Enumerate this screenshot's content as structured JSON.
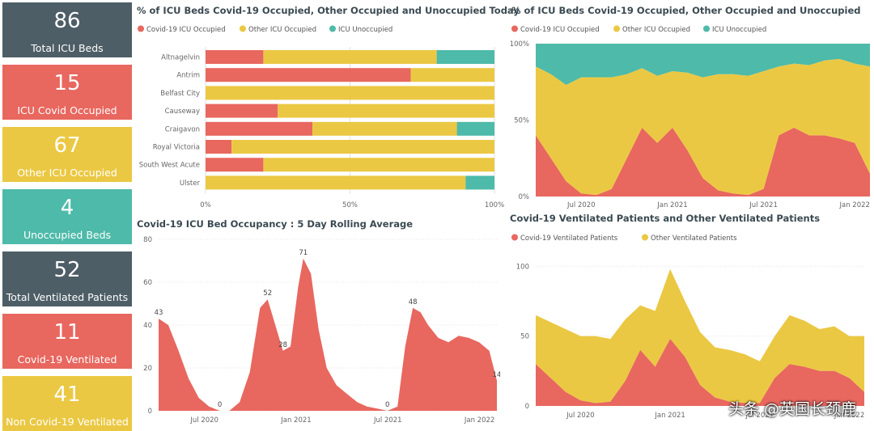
{
  "colors": {
    "covid": "#e8675f",
    "other": "#ebc843",
    "unocc": "#4ebaa9",
    "dark": "#4e5e66",
    "axis": "#666666"
  },
  "cards": [
    {
      "value": "86",
      "label": "Total ICU Beds",
      "color": "#4e5e66"
    },
    {
      "value": "15",
      "label": "ICU Covid Occupied",
      "color": "#e8675f"
    },
    {
      "value": "67",
      "label": "Other ICU Occupied",
      "color": "#ebc843"
    },
    {
      "value": "4",
      "label": "Unoccupied Beds",
      "color": "#4ebaa9"
    },
    {
      "value": "52",
      "label": "Total Ventilated Patients",
      "color": "#4e5e66"
    },
    {
      "value": "11",
      "label": "Covid-19 Ventilated",
      "color": "#e8675f"
    },
    {
      "value": "41",
      "label": "Non Covid-19 Ventilated",
      "color": "#ebc843"
    }
  ],
  "titles": {
    "today": "% of ICU Beds Covid-19 Occupied, Other Occupied and Unoccupied Today",
    "trend": "% of ICU Beds Covid-19 Occupied, Other Occupied and Unoccupied",
    "rolling": "Covid-19 ICU Bed Occupancy : 5 Day Rolling Average",
    "vent": "Covid-19 Ventilated Patients and Other Ventilated Patients"
  },
  "watermark": "头条 @英国长颈鹿",
  "chart_data": [
    {
      "type": "bar",
      "stacked": true,
      "orientation": "horizontal",
      "title": "% of ICU Beds Covid-19 Occupied, Other Occupied and Unoccupied Today",
      "categories": [
        "Altnagelvin",
        "Antrim",
        "Belfast City",
        "Causeway",
        "Craigavon",
        "Royal Victoria",
        "South West Acute",
        "Ulster"
      ],
      "series": [
        {
          "name": "Covid-19 ICU Occupied",
          "values": [
            20,
            71,
            0,
            25,
            37,
            9,
            20,
            0
          ]
        },
        {
          "name": "Other ICU Occupied",
          "values": [
            60,
            29,
            100,
            75,
            50,
            91,
            80,
            90
          ]
        },
        {
          "name": "ICU Unoccupied",
          "values": [
            20,
            0,
            0,
            0,
            13,
            0,
            0,
            10
          ]
        }
      ],
      "xticks": [
        "0%",
        "50%",
        "100%"
      ],
      "xlim": [
        0,
        100
      ],
      "legend": "top-left"
    },
    {
      "type": "area",
      "stacked": true,
      "percent": true,
      "title": "% of ICU Beds Covid-19 Occupied, Other Occupied and Unoccupied",
      "x": [
        "2020-04",
        "2020-05",
        "2020-06",
        "2020-07",
        "2020-08",
        "2020-09",
        "2020-10",
        "2020-11",
        "2020-12",
        "2021-01",
        "2021-02",
        "2021-03",
        "2021-04",
        "2021-05",
        "2021-06",
        "2021-07",
        "2021-08",
        "2021-09",
        "2021-10",
        "2021-11",
        "2021-12",
        "2022-01",
        "2022-02"
      ],
      "series": [
        {
          "name": "Covid-19 ICU Occupied",
          "values": [
            40,
            25,
            10,
            2,
            1,
            5,
            25,
            45,
            35,
            45,
            30,
            12,
            4,
            2,
            1,
            5,
            40,
            45,
            40,
            40,
            38,
            35,
            15
          ]
        },
        {
          "name": "Other ICU Occupied",
          "values": [
            45,
            55,
            63,
            76,
            77,
            73,
            55,
            39,
            44,
            37,
            51,
            66,
            76,
            78,
            78,
            77,
            45,
            42,
            46,
            49,
            52,
            52,
            70
          ]
        },
        {
          "name": "ICU Unoccupied",
          "values": [
            15,
            20,
            27,
            22,
            22,
            22,
            20,
            16,
            21,
            18,
            19,
            22,
            20,
            20,
            21,
            18,
            15,
            13,
            14,
            11,
            10,
            13,
            15
          ]
        }
      ],
      "xticks": [
        "Jul 2020",
        "Jan 2021",
        "Jul 2021",
        "Jan 2022"
      ],
      "yticks": [
        "0%",
        "50%",
        "100%"
      ],
      "ylim": [
        0,
        100
      ],
      "legend": "top-left"
    },
    {
      "type": "area",
      "title": "Covid-19 ICU Bed Occupancy : 5 Day Rolling Average",
      "x": [
        "2020-04-01",
        "2020-04-20",
        "2020-05-10",
        "2020-05-30",
        "2020-06-20",
        "2020-07-10",
        "2020-08-01",
        "2020-08-20",
        "2020-09-10",
        "2020-09-30",
        "2020-10-20",
        "2020-11-05",
        "2020-11-20",
        "2020-12-05",
        "2020-12-20",
        "2021-01-05",
        "2021-01-15",
        "2021-01-30",
        "2021-02-15",
        "2021-03-01",
        "2021-03-20",
        "2021-04-10",
        "2021-05-01",
        "2021-05-20",
        "2021-06-10",
        "2021-06-30",
        "2021-07-20",
        "2021-08-05",
        "2021-08-20",
        "2021-09-05",
        "2021-09-20",
        "2021-10-10",
        "2021-10-30",
        "2021-11-20",
        "2021-12-10",
        "2021-12-30",
        "2022-01-20",
        "2022-02-05"
      ],
      "values": [
        43,
        40,
        28,
        15,
        6,
        2,
        0,
        0,
        4,
        18,
        48,
        52,
        40,
        28,
        30,
        58,
        71,
        64,
        38,
        20,
        12,
        8,
        4,
        2,
        1,
        0,
        2,
        30,
        48,
        46,
        40,
        34,
        32,
        35,
        34,
        32,
        28,
        14
      ],
      "labels": [
        {
          "x": "2020-04-01",
          "text": "43"
        },
        {
          "x": "2020-08-01",
          "text": "0"
        },
        {
          "x": "2020-11-05",
          "text": "52"
        },
        {
          "x": "2020-12-05",
          "text": "28"
        },
        {
          "x": "2021-01-15",
          "text": "71"
        },
        {
          "x": "2021-06-30",
          "text": "0"
        },
        {
          "x": "2021-08-20",
          "text": "48"
        },
        {
          "x": "2022-02-05",
          "text": "14"
        }
      ],
      "xticks": [
        "Jul 2020",
        "Jan 2021",
        "Jul 2021",
        "Jan 2022"
      ],
      "yticks": [
        0,
        20,
        40,
        60,
        80
      ],
      "ylim": [
        0,
        80
      ]
    },
    {
      "type": "area",
      "stacked": true,
      "title": "Covid-19 Ventilated Patients and Other Ventilated Patients",
      "x": [
        "2020-04",
        "2020-05",
        "2020-06",
        "2020-07",
        "2020-08",
        "2020-09",
        "2020-10",
        "2020-11",
        "2020-12",
        "2021-01",
        "2021-02",
        "2021-03",
        "2021-04",
        "2021-05",
        "2021-06",
        "2021-07",
        "2021-08",
        "2021-09",
        "2021-10",
        "2021-11",
        "2021-12",
        "2022-01",
        "2022-02"
      ],
      "series": [
        {
          "name": "Covid-19 Ventilated Patients",
          "values": [
            30,
            20,
            10,
            4,
            2,
            3,
            18,
            40,
            28,
            48,
            35,
            15,
            6,
            3,
            2,
            2,
            20,
            30,
            28,
            25,
            25,
            20,
            10
          ]
        },
        {
          "name": "Other Ventilated Patients",
          "values": [
            35,
            40,
            45,
            46,
            48,
            45,
            44,
            32,
            40,
            50,
            40,
            38,
            36,
            37,
            35,
            30,
            30,
            35,
            33,
            30,
            32,
            30,
            40
          ]
        }
      ],
      "xticks": [
        "Jul 2020",
        "Jan 2021",
        "Jul 2021",
        "Jan 2022"
      ],
      "yticks": [
        0,
        50,
        100
      ],
      "ylim": [
        0,
        110
      ],
      "legend": "top-left"
    }
  ]
}
